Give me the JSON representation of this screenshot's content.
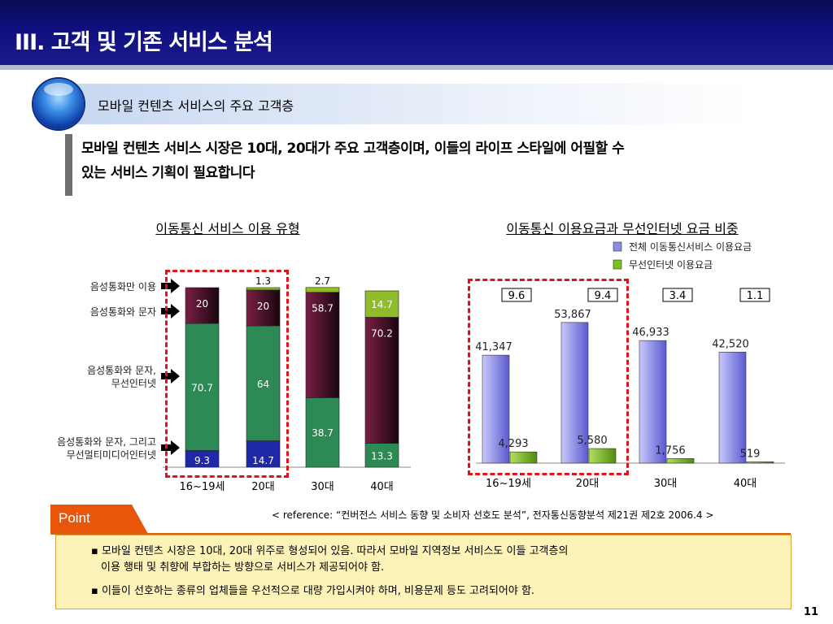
{
  "header": {
    "title": "III. 고객 및 기존 서비스 분석"
  },
  "section": {
    "title": "모바일 컨텐츠 서비스의 주요 고객층"
  },
  "lead": {
    "line1": "모바일 컨텐츠 서비스 시장은 10대, 20대가 주요 고객층이며, 이들의 라이프 스타일에 어필할 수",
    "line2": "있는 서비스 기획이 필요합니다"
  },
  "chart_titles": {
    "left": "이동통신 서비스 이용 유형",
    "right": "이동통신 이용요금과 무선인터넷 요금 비중"
  },
  "source": "< reference: “컨버전스 서비스 동향 및 소비자 선호도 분석”, 전자통신동향분석 제21권 제2호 2006.4 >",
  "point": {
    "label": "Point",
    "bullet1_line1": "▪ 모바일 컨텐츠 시장은 10대, 20대 위주로 형성되어 있음. 따라서 모바일 지역정보 서비스도 이들 고객층의",
    "bullet1_line2": "이용 행태 및 취향에 부합하는 방향으로 서비스가 제공되어야 함.",
    "bullet2": "▪ 이들이 선호하는 종류의 업체들을 우선적으로 대량 가입시켜야 하며, 비용문제 등도 고려되어야 함."
  },
  "page_number": "11",
  "chart_data": [
    {
      "type": "bar",
      "stacked": true,
      "title": "이동통신 서비스 이용 유형",
      "categories": [
        "16~19세",
        "20대",
        "30대",
        "40대"
      ],
      "series": [
        {
          "name": "음성통화와 문자, 그리고\n무선멀티미디어인터넷",
          "values": [
            9.3,
            14.7,
            0,
            0
          ],
          "color": "#1e28a8"
        },
        {
          "name": "음성통화와 문자,\n무선인터넷",
          "values": [
            70.7,
            64,
            38.7,
            13.3
          ],
          "color": "#2e8a55"
        },
        {
          "name": "음성통화와 문자",
          "values": [
            20,
            20,
            58.7,
            70.2
          ],
          "color": "#7a1f45"
        },
        {
          "name": "음성통화만 이용",
          "values": [
            0,
            1.3,
            2.7,
            14.7
          ],
          "color": "#8fbc28"
        }
      ],
      "ylim": [
        0,
        100
      ]
    },
    {
      "type": "bar",
      "title": "이동통신 이용요금과 무선인터넷 요금 비중",
      "categories": [
        "16~19세",
        "20대",
        "30대",
        "40대"
      ],
      "series": [
        {
          "name": "전체 이동통신서비스 이용요금",
          "values": [
            41347,
            53867,
            46933,
            42520
          ],
          "labels": [
            "41,347",
            "53,867",
            "46,933",
            "42,520"
          ],
          "color": "#8c8ce8"
        },
        {
          "name": "무선인터넷 이용요금",
          "values": [
            4293,
            5580,
            1756,
            519
          ],
          "labels": [
            "4,293",
            "5,580",
            "1,756",
            "519"
          ],
          "color": "#7cc21c"
        }
      ],
      "ratios": [
        "9.6",
        "9.4",
        "3.4",
        "1.1"
      ],
      "ylim": [
        0,
        60000
      ]
    }
  ]
}
